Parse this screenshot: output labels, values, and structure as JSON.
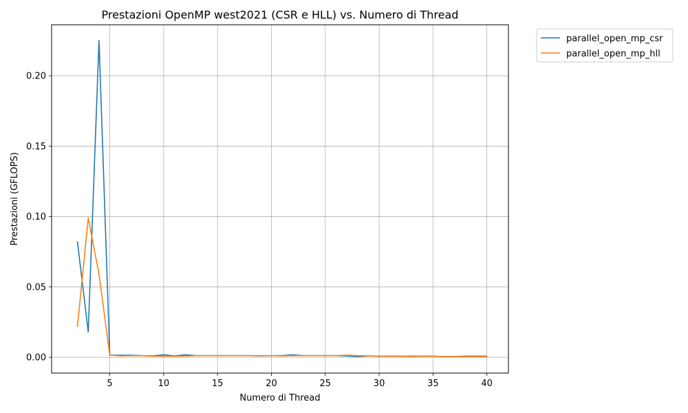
{
  "chart_data": {
    "type": "line",
    "title": "Prestazioni OpenMP west2021 (CSR e HLL) vs. Numero di Thread",
    "xlabel": "Numero di Thread",
    "ylabel": "Prestazioni (GFLOPS)",
    "xlim": [
      -0.4,
      42.0
    ],
    "ylim": [
      -0.0112,
      0.2362
    ],
    "xticks": [
      5,
      10,
      15,
      20,
      25,
      30,
      35,
      40
    ],
    "xtick_labels": [
      "5",
      "10",
      "15",
      "20",
      "25",
      "30",
      "35",
      "40"
    ],
    "yticks": [
      0.0,
      0.05,
      0.1,
      0.15,
      0.2
    ],
    "ytick_labels": [
      "0.00",
      "0.05",
      "0.10",
      "0.15",
      "0.20"
    ],
    "grid": true,
    "legend_position": "outside-upper-right",
    "x": [
      2,
      3,
      4,
      5,
      6,
      7,
      8,
      9,
      10,
      11,
      12,
      13,
      14,
      15,
      16,
      17,
      18,
      19,
      20,
      21,
      22,
      23,
      24,
      25,
      26,
      27,
      28,
      29,
      30,
      31,
      32,
      33,
      34,
      35,
      36,
      37,
      38,
      39,
      40
    ],
    "series": [
      {
        "name": "parallel_open_mp_csr",
        "color": "#1f77b4",
        "values": [
          0.082,
          0.018,
          0.225,
          0.0015,
          0.0015,
          0.0015,
          0.0012,
          0.001,
          0.0018,
          0.001,
          0.0018,
          0.0012,
          0.0012,
          0.0012,
          0.0012,
          0.0012,
          0.0012,
          0.001,
          0.0012,
          0.0012,
          0.0018,
          0.0012,
          0.0012,
          0.0012,
          0.0012,
          0.001,
          0.0005,
          0.001,
          0.0008,
          0.0008,
          0.0008,
          0.0008,
          0.0008,
          0.0008,
          0.0005,
          0.0005,
          0.0008,
          0.0008,
          0.0008
        ]
      },
      {
        "name": "parallel_open_mp_hll",
        "color": "#ff7f0e",
        "values": [
          0.022,
          0.099,
          0.059,
          0.0015,
          0.001,
          0.0012,
          0.0012,
          0.0008,
          0.0008,
          0.0008,
          0.0008,
          0.0012,
          0.0012,
          0.0012,
          0.0012,
          0.0012,
          0.0012,
          0.0012,
          0.0012,
          0.001,
          0.0012,
          0.0012,
          0.0012,
          0.0012,
          0.0012,
          0.0015,
          0.0012,
          0.001,
          0.0008,
          0.0008,
          0.0008,
          0.0005,
          0.0008,
          0.0008,
          0.0005,
          0.0005,
          0.0005,
          0.0005,
          0.0005
        ]
      }
    ]
  }
}
